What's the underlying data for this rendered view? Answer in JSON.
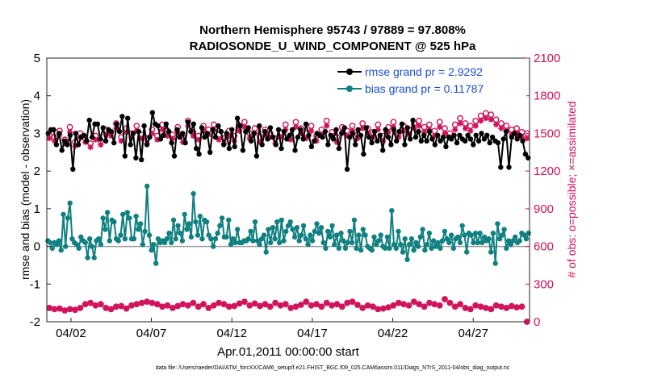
{
  "chart_data": {
    "type": "line",
    "title": "Northern Hemisphere 95743 / 97889 = 97.808%",
    "subtitle": "RADIOSONDE_U_WIND_COMPONENT @ 525 hPa",
    "xlabel": "Apr.01,2011 00:00:00 start",
    "ylabel": "rmse and bias (model - observation)",
    "ylabel_right": "# of obs: o=possible; ×=assimilated",
    "footnote": "data file: /Users/raeder/DAI/ATM_forcXX/CAM6_setup/f.e21.FHIST_BGC.f09_025.CAM6assim.011/Diags_NTrS_2011-04/obs_diag_output.nc",
    "xlim": [
      0.5,
      30.5
    ],
    "ylim": [
      -2,
      5
    ],
    "ylim_right": [
      0,
      2100
    ],
    "x_ticks": [
      {
        "day": 2,
        "label": "04/02"
      },
      {
        "day": 7,
        "label": "04/07"
      },
      {
        "day": 12,
        "label": "04/12"
      },
      {
        "day": 17,
        "label": "04/17"
      },
      {
        "day": 22,
        "label": "04/22"
      },
      {
        "day": 27,
        "label": "04/27"
      }
    ],
    "y_ticks": [
      "-2",
      "-1",
      "0",
      "1",
      "2",
      "3",
      "4",
      "5"
    ],
    "y_ticks_right": [
      "0",
      "300",
      "600",
      "900",
      "1200",
      "1500",
      "1800",
      "2100"
    ],
    "legend": {
      "position": "top-right",
      "rmse_label": "rmse grand pr = 2.9292",
      "bias_label": "bias grand pr = 0.11787"
    },
    "colors": {
      "rmse": "#000000",
      "bias": "#108080",
      "obs": "#d0105a",
      "legend_text": "#1a4fd6",
      "zero_line": "#999999"
    },
    "series": [
      {
        "name": "rmse",
        "axis": "left",
        "values": [
          3.0,
          3.1,
          3.1,
          2.7,
          3.0,
          2.55,
          2.8,
          2.7,
          2.95,
          2.05,
          3.0,
          2.7,
          2.9,
          2.95,
          2.8,
          3.35,
          2.9,
          3.25,
          3.25,
          2.85,
          3.15,
          2.8,
          3.1,
          3.05,
          2.75,
          3.25,
          3.05,
          3.45,
          2.4,
          3.4,
          2.7,
          3.0,
          2.35,
          3.05,
          2.3,
          3.2,
          2.7,
          2.9,
          3.55,
          3.25,
          3.2,
          2.85,
          2.95,
          3.25,
          3.05,
          2.75,
          2.4,
          3.1,
          2.9,
          3.0,
          2.75,
          3.3,
          3.05,
          3.25,
          2.6,
          2.45,
          3.15,
          2.9,
          3.0,
          2.5,
          3.1,
          2.9,
          3.2,
          3.05,
          2.7,
          3.0,
          2.6,
          3.1,
          2.65,
          3.4,
          3.2,
          2.55,
          3.05,
          3.15,
          2.8,
          3.0,
          2.4,
          3.2,
          2.7,
          3.05,
          2.85,
          3.15,
          2.9,
          2.7,
          3.1,
          2.6,
          3.05,
          2.85,
          2.95,
          3.1,
          2.55,
          2.9,
          3.1,
          2.85,
          3.25,
          2.95,
          2.65,
          2.8,
          3.0,
          2.95,
          2.9,
          3.05,
          2.7,
          2.95,
          2.85,
          3.1,
          2.6,
          3.0,
          3.15,
          2.05,
          2.9,
          3.0,
          2.7,
          3.1,
          2.95,
          2.45,
          3.15,
          2.9,
          2.75,
          3.05,
          2.8,
          2.95,
          2.55,
          3.1,
          2.9,
          2.7,
          3.1,
          2.8,
          3.05,
          3.25,
          2.7,
          3.15,
          2.85,
          3.35,
          2.9,
          3.05,
          2.8,
          2.95,
          2.8,
          3.05,
          2.85,
          2.7,
          2.95,
          2.8,
          2.9,
          2.65,
          2.9,
          2.85,
          2.95,
          2.75,
          2.95,
          2.85,
          2.8,
          2.95,
          2.85,
          2.7,
          2.95,
          2.8,
          3.0,
          2.85,
          2.95,
          2.75,
          2.9,
          2.8,
          2.75,
          2.1,
          2.85,
          3.05,
          2.1,
          2.9,
          3.0,
          2.85,
          2.95,
          2.8,
          2.45,
          2.35
        ]
      },
      {
        "name": "bias",
        "axis": "left",
        "values": [
          0.15,
          0.1,
          -0.05,
          0.1,
          0.05,
          0.15,
          -0.1,
          0.85,
          0.0,
          0.75,
          1.15,
          0.2,
          0.1,
          0.05,
          -0.05,
          0.25,
          0.15,
          0.1,
          -0.3,
          0.2,
          0.0,
          -0.3,
          0.15,
          0.2,
          0.05,
          0.75,
          0.45,
          0.9,
          0.15,
          0.7,
          0.65,
          0.2,
          0.15,
          0.3,
          0.85,
          0.2,
          0.9,
          0.75,
          0.2,
          0.2,
          0.8,
          0.45,
          0.6,
          0.05,
          0.4,
          1.6,
          0.3,
          -0.1,
          0.05,
          -0.45,
          0.2,
          0.1,
          0.15,
          0.1,
          0.2,
          0.35,
          0.1,
          0.7,
          0.2,
          0.55,
          0.35,
          0.15,
          0.85,
          0.45,
          0.6,
          0.25,
          1.4,
          0.65,
          0.3,
          0.8,
          0.2,
          0.7,
          0.65,
          0.3,
          0.2,
          0.0,
          0.2,
          0.35,
          0.55,
          0.75,
          0.25,
          0.25,
          0.7,
          0.05,
          0.2,
          0.1,
          0.45,
          0.1,
          0.1,
          0.15,
          0.15,
          0.2,
          0.4,
          0.15,
          0.65,
          0.15,
          0.05,
          0.2,
          0.3,
          -0.15,
          0.45,
          0.1,
          0.5,
          0.2,
          0.65,
          0.1,
          0.7,
          0.15,
          0.4,
          0.55,
          0.65,
          0.45,
          0.25,
          0.5,
          0.15,
          0.3,
          0.55,
          0.2,
          0.05,
          0.3,
          0.15,
          0.4,
          0.6,
          0.35,
          0.5,
          0.1,
          -0.05,
          0.4,
          0.25,
          0.55,
          0.05,
          0.3,
          -0.05,
          0.35,
          0.15,
          -0.05,
          0.1,
          0.4,
          0.1,
          0.7,
          -0.05,
          0.3,
          -0.1,
          0.45,
          0.3,
          0.0,
          -0.05,
          -0.1,
          0.25,
          0.05,
          0.15,
          0.3,
          0.0,
          -0.05,
          0.25,
          -0.05,
          0.95,
          0.05,
          -0.05,
          0.4,
          0.05,
          -0.15,
          0.2,
          -0.35,
          0.05,
          0.2,
          -0.1,
          0.1,
          0.0,
          0.25,
          0.45,
          -0.1,
          0.05,
          0.35,
          -0.05,
          0.15,
          0.0,
          0.1,
          -0.05,
          0.15,
          0.4,
          0.2,
          0.1,
          0.3,
          -0.05,
          0.2,
          0.25,
          0.1,
          0.55,
          0.3,
          -0.15,
          0.35,
          0.3,
          0.1,
          0.35,
          0.1,
          0.35,
          0.1,
          0.25,
          0.15,
          0.2,
          -0.15,
          0.35,
          -0.45,
          0.6,
          0.2,
          0.3,
          0.45,
          -0.05,
          0.15,
          0.05,
          0.15,
          0.25,
          0.1,
          0.15,
          0.35,
          0.3,
          0.2,
          0.35
        ]
      },
      {
        "name": "possible",
        "axis": "right",
        "values": [
          1490,
          1470,
          1520,
          1450,
          1550,
          1430,
          1500,
          1460,
          1420,
          1480,
          1440,
          1530,
          1510,
          1580,
          1470,
          1540,
          1500,
          1560,
          1490,
          1460,
          1530,
          1480,
          1570,
          1520,
          1490,
          1550,
          1470,
          1600,
          1510,
          1480,
          1560,
          1530,
          1570,
          1490,
          1460,
          1520,
          1480,
          1560,
          1590,
          1500,
          1540,
          1470,
          1530,
          1500,
          1460,
          1510,
          1570,
          1480,
          1590,
          1540,
          1500,
          1560,
          1480,
          1530,
          1600,
          1510,
          1470,
          1550,
          1520,
          1560,
          1490,
          1580,
          1540,
          1510,
          1570,
          1480,
          1550,
          1590,
          1500,
          1560,
          1530,
          1580,
          1600,
          1550,
          1570,
          1520,
          1590,
          1540,
          1500,
          1570,
          1620,
          1580,
          1560,
          1600,
          1640,
          1660,
          1650,
          1610,
          1580,
          1560,
          1530,
          1540,
          1510,
          1500
        ]
      },
      {
        "name": "assimilated",
        "axis": "right",
        "values": [
          1460,
          1440,
          1490,
          1420,
          1510,
          1400,
          1470,
          1430,
          1390,
          1450,
          1410,
          1490,
          1480,
          1540,
          1440,
          1510,
          1470,
          1520,
          1460,
          1420,
          1500,
          1450,
          1530,
          1480,
          1460,
          1510,
          1430,
          1560,
          1480,
          1450,
          1520,
          1490,
          1530,
          1450,
          1420,
          1480,
          1440,
          1520,
          1550,
          1460,
          1500,
          1430,
          1490,
          1470,
          1420,
          1470,
          1530,
          1450,
          1550,
          1500,
          1460,
          1520,
          1440,
          1490,
          1560,
          1480,
          1430,
          1510,
          1480,
          1520,
          1460,
          1540,
          1500,
          1470,
          1530,
          1440,
          1510,
          1550,
          1470,
          1520,
          1490,
          1540,
          1560,
          1510,
          1530,
          1480,
          1550,
          1500,
          1470,
          1530,
          1580,
          1540,
          1520,
          1560,
          1600,
          1620,
          1610,
          1570,
          1540,
          1520,
          1490,
          1500,
          1470,
          1460
        ]
      },
      {
        "name": "possible_level",
        "axis": "right",
        "values": [
          110,
          100,
          105,
          90,
          100,
          95,
          110,
          140,
          150,
          130,
          140,
          110,
          100,
          120,
          125,
          105,
          130,
          140,
          150,
          160,
          150,
          140,
          120,
          130,
          110,
          125,
          140,
          130,
          150,
          120,
          140,
          110,
          130,
          150,
          140,
          120,
          125,
          145,
          160,
          130,
          145,
          125,
          140,
          120,
          150,
          130,
          140,
          110,
          120,
          135,
          160,
          130,
          140,
          120,
          150,
          130,
          140,
          120,
          150,
          160,
          135,
          110,
          130,
          120,
          100,
          105,
          115,
          130,
          150,
          140,
          130,
          160,
          140,
          120,
          150,
          140,
          130,
          180,
          150,
          120,
          140,
          110,
          100,
          130,
          120,
          110,
          100,
          130,
          120,
          110,
          125,
          115,
          120,
          0
        ]
      }
    ]
  }
}
